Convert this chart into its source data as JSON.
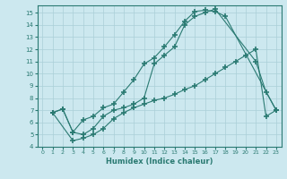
{
  "xlabel": "Humidex (Indice chaleur)",
  "background_color": "#cce8ef",
  "grid_color": "#aacfd8",
  "line_color": "#2a7a72",
  "xlim": [
    -0.5,
    23.5
  ],
  "ylim": [
    4,
    15.6
  ],
  "xticks": [
    0,
    1,
    2,
    3,
    4,
    5,
    6,
    7,
    8,
    9,
    10,
    11,
    12,
    13,
    14,
    15,
    16,
    17,
    18,
    19,
    20,
    21,
    22,
    23
  ],
  "yticks": [
    4,
    5,
    6,
    7,
    8,
    9,
    10,
    11,
    12,
    13,
    14,
    15
  ],
  "line1_x": [
    1,
    2,
    3,
    4,
    5,
    6,
    7,
    8,
    9,
    10,
    11,
    12,
    13,
    14,
    15,
    16,
    17,
    18,
    23
  ],
  "line1_y": [
    6.8,
    7.1,
    5.2,
    6.2,
    6.5,
    7.2,
    7.5,
    8.5,
    9.5,
    10.8,
    11.3,
    12.2,
    13.2,
    14.3,
    15.1,
    15.2,
    15.1,
    14.7,
    7.0
  ],
  "line2_x": [
    1,
    2,
    3,
    4,
    5,
    6,
    7,
    8,
    9,
    10,
    11,
    12,
    13,
    14,
    15,
    16,
    17,
    21,
    22,
    23
  ],
  "line2_y": [
    6.8,
    7.1,
    5.2,
    5.0,
    5.5,
    6.5,
    7.0,
    7.2,
    7.5,
    8.0,
    10.8,
    11.5,
    12.2,
    14.0,
    14.7,
    15.0,
    15.3,
    11.0,
    8.5,
    7.0
  ],
  "line3_x": [
    1,
    3,
    4,
    5,
    6,
    7,
    8,
    9,
    10,
    11,
    12,
    13,
    14,
    15,
    16,
    17,
    18,
    19,
    20,
    21,
    22,
    23
  ],
  "line3_y": [
    6.8,
    4.5,
    4.7,
    5.0,
    5.5,
    6.3,
    6.8,
    7.2,
    7.5,
    7.8,
    8.0,
    8.3,
    8.7,
    9.0,
    9.5,
    10.0,
    10.5,
    11.0,
    11.5,
    12.0,
    6.5,
    7.0
  ]
}
